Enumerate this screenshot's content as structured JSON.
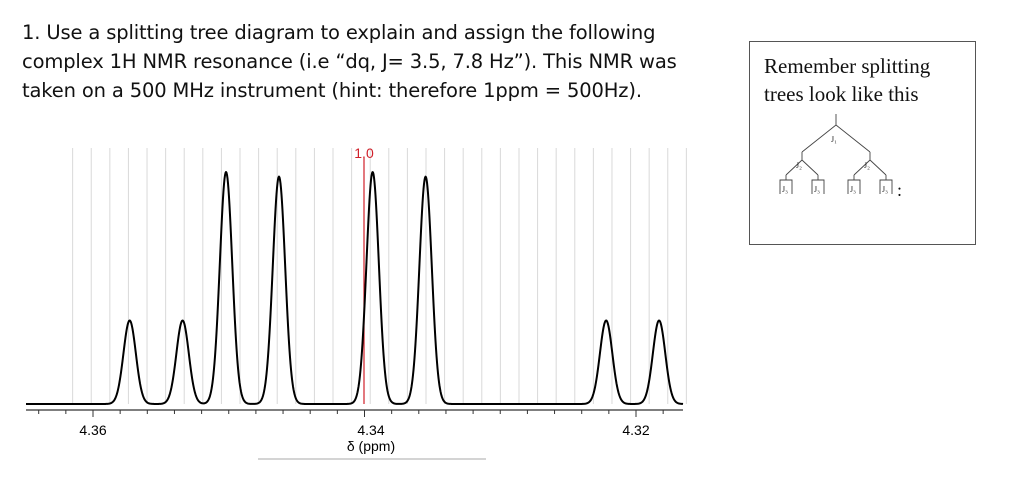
{
  "question": {
    "lines": [
      "1. Use a splitting tree diagram to explain and assign the following",
      "complex 1H NMR resonance (i.e  “dq, J= 3.5, 7.8 Hz”).  This NMR was",
      "taken on a 500 MHz instrument (hint: therefore 1ppm = 500Hz)."
    ]
  },
  "spectrum": {
    "integral_label": "1.0",
    "axis_label": "δ (ppm)",
    "tick_labels": [
      "4.36",
      "4.34",
      "4.32"
    ],
    "colors": {
      "integral": "#d0202a",
      "trace": "#000000",
      "grid": "#d9d9d9"
    }
  },
  "chart_data": {
    "type": "line",
    "title": "",
    "xlabel": "δ (ppm)",
    "ylabel": "",
    "x_reversed": true,
    "xlim": [
      4.3615,
      4.3162
    ],
    "x_ticks": [
      4.36,
      4.34,
      4.32
    ],
    "peaks_ppm": [
      4.3573,
      4.3534,
      4.3502,
      4.3463,
      4.3394,
      4.3355,
      4.3222,
      4.3183
    ],
    "peak_heights": [
      0.36,
      0.36,
      1.0,
      0.98,
      1.0,
      0.98,
      0.36,
      0.36
    ],
    "integral": "1.0",
    "multiplicity": "dq",
    "J_Hz": [
      3.5,
      7.8
    ],
    "grid": true
  },
  "hint": {
    "lines": [
      "Remember splitting",
      "trees look like this"
    ],
    "j1": "J₁",
    "j2": "J₂",
    "j3": "J₃",
    "trailing": ":"
  }
}
